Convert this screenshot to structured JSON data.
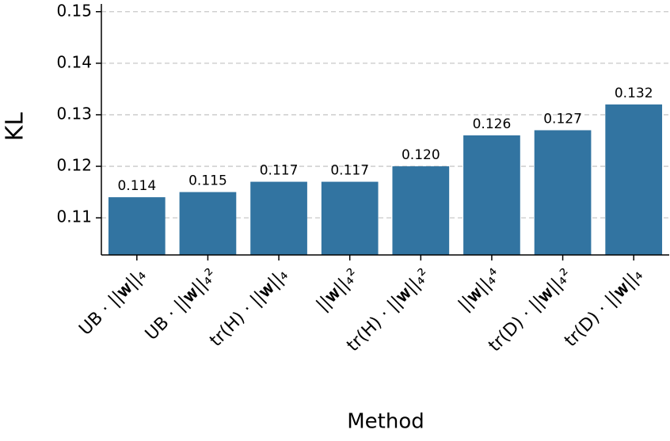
{
  "chart_data": {
    "type": "bar",
    "x_label": "Method",
    "y_label": "KL",
    "categories": [
      "UB · ||𝐰||₄",
      "UB · ||𝐰||₄²",
      "tr(H) · ||𝐰||₄",
      "||𝐰||₄²",
      "tr(H) · ||𝐰||₄²",
      "||𝐰||₄⁴",
      "tr(D) · ||𝐰||₄²",
      "tr(D) · ||𝐰||₄"
    ],
    "values": [
      0.114,
      0.115,
      0.117,
      0.117,
      0.12,
      0.126,
      0.127,
      0.132
    ],
    "value_labels": [
      "0.114",
      "0.115",
      "0.117",
      "0.117",
      "0.120",
      "0.126",
      "0.127",
      "0.132"
    ],
    "color": "#3274a1",
    "ylim": [
      0.1028,
      0.1515
    ],
    "yticks": [
      0.11,
      0.12,
      0.13,
      0.14,
      0.15
    ],
    "grid": true
  }
}
